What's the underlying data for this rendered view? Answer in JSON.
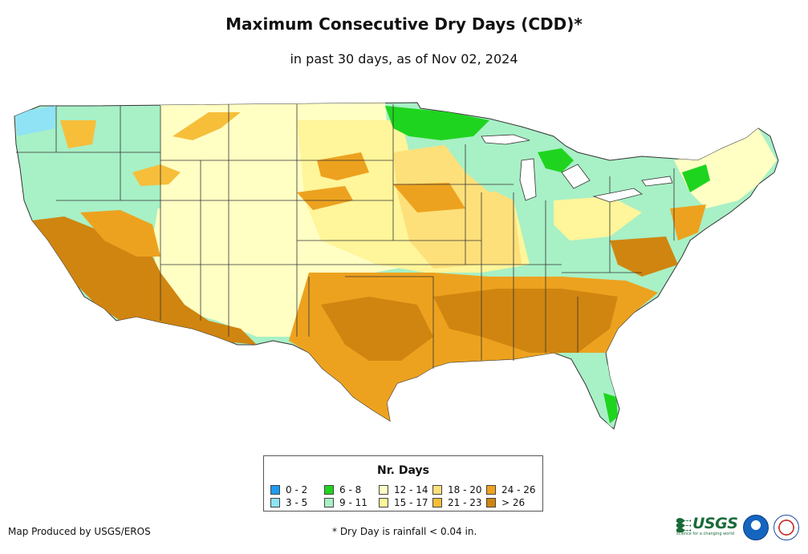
{
  "title": "Maximum Consecutive Dry Days (CDD)*",
  "subtitle": "in past 30 days, as of Nov 02, 2024",
  "legend": {
    "title": "Nr. Days",
    "items": [
      {
        "label": "0 - 2",
        "color": "#1e9bf0"
      },
      {
        "label": "3 - 5",
        "color": "#8fe3f5"
      },
      {
        "label": "6 - 8",
        "color": "#1fd41f"
      },
      {
        "label": "9 - 11",
        "color": "#a8f0c6"
      },
      {
        "label": "12 - 14",
        "color": "#ffffc4"
      },
      {
        "label": "15 - 17",
        "color": "#fff59a"
      },
      {
        "label": "18 - 20",
        "color": "#fde07a"
      },
      {
        "label": "21 - 23",
        "color": "#f7be3a"
      },
      {
        "label": "24 - 26",
        "color": "#eda21f"
      },
      {
        "label": "> 26",
        "color": "#d08510"
      }
    ]
  },
  "footer": {
    "producer": "Map Produced by USGS/EROS",
    "note": "* Dry Day is rainfall < 0.04 in."
  },
  "logos": {
    "usgs": "USGS",
    "usgs_tagline": "science for a changing world"
  }
}
